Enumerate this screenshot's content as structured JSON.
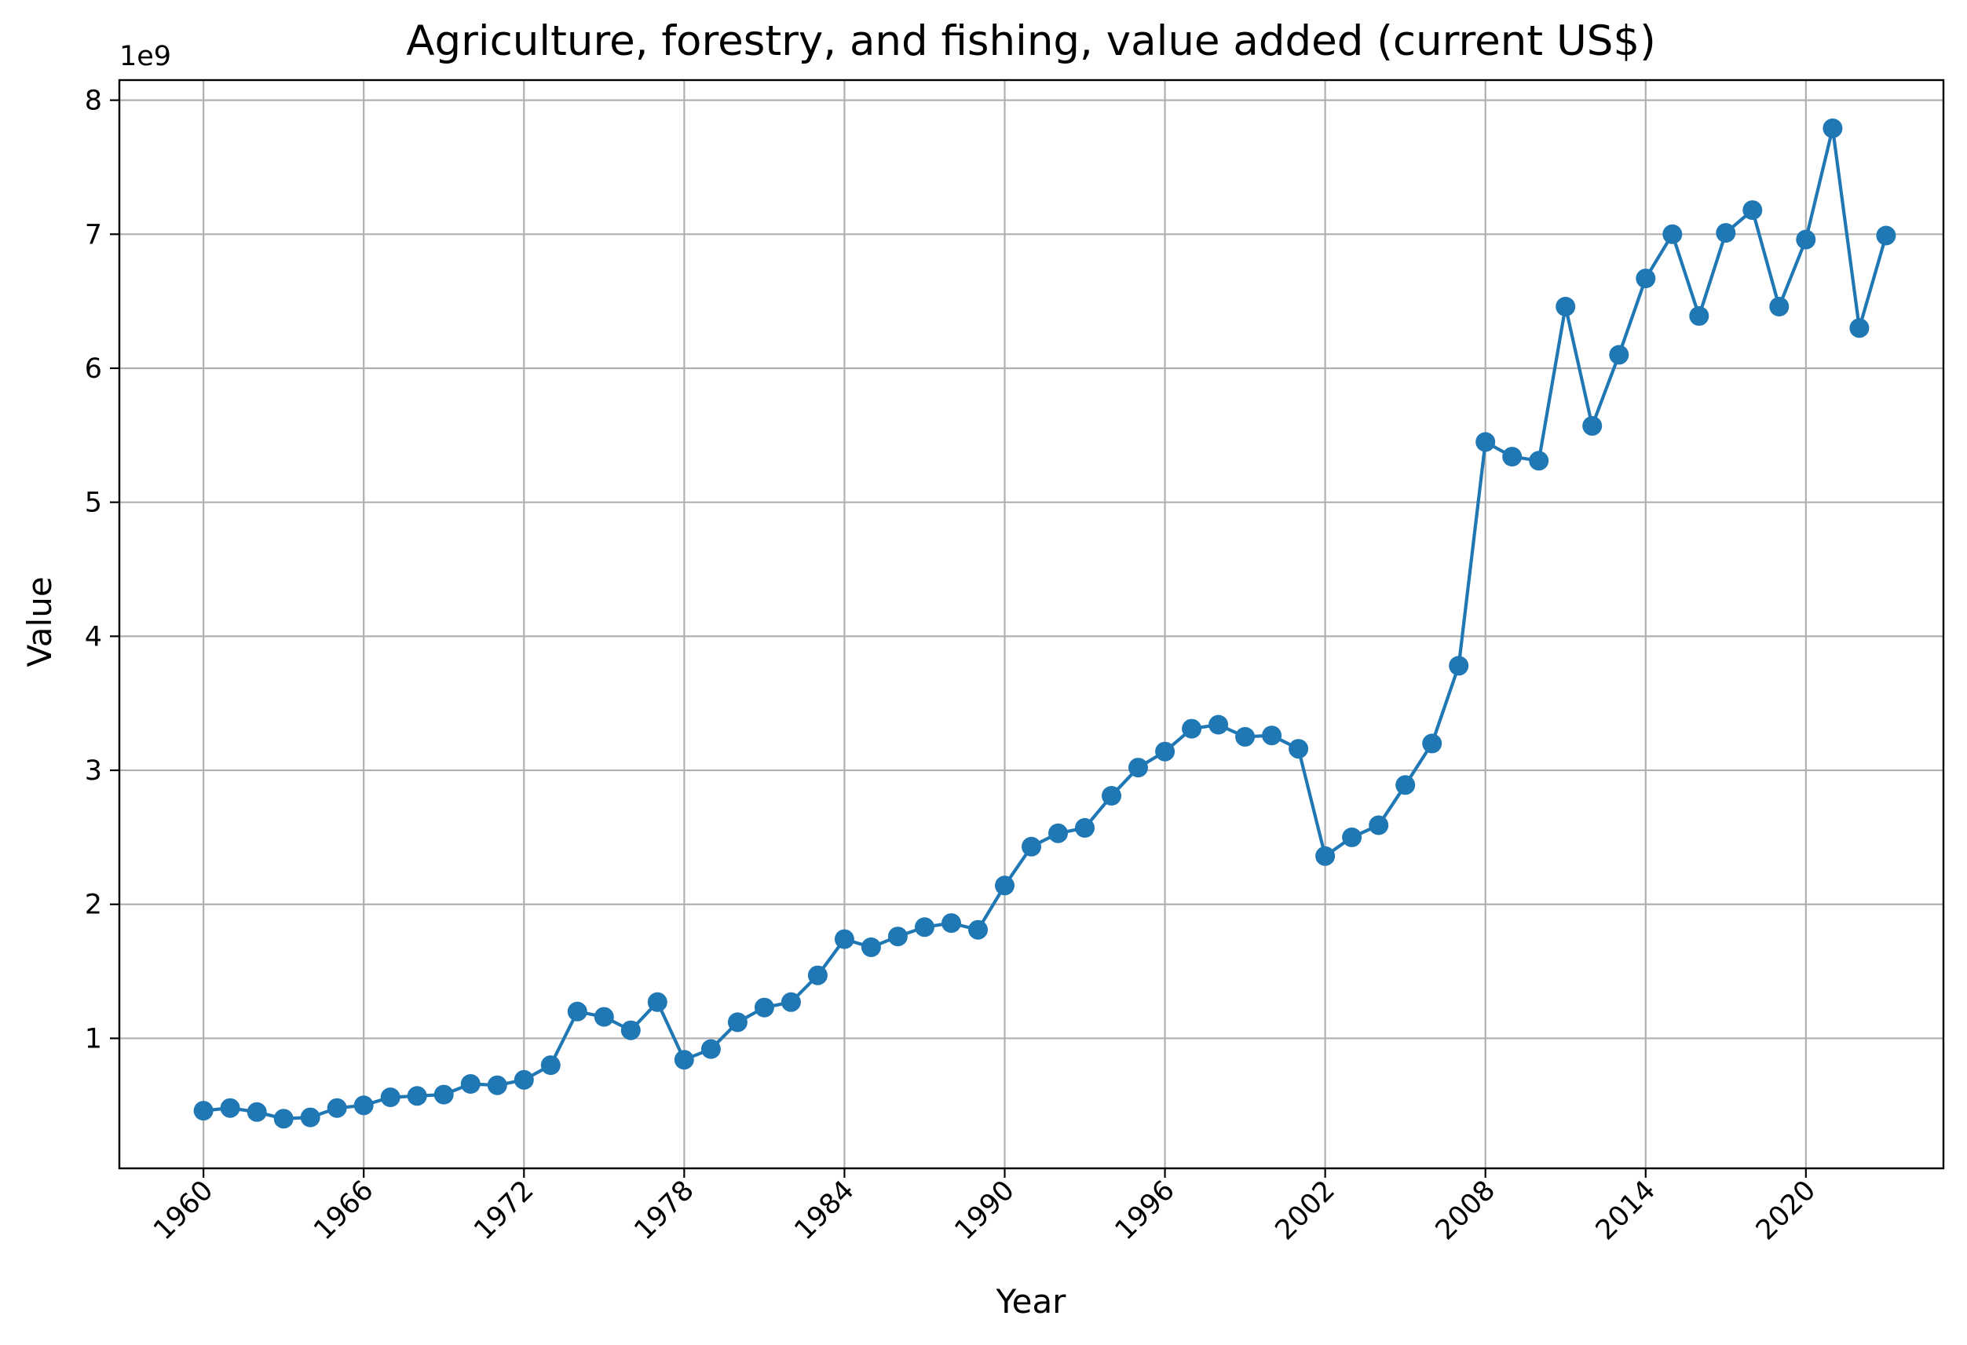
{
  "chart_data": {
    "type": "line",
    "title": "Agriculture, forestry, and fishing, value added (current US$)",
    "xlabel": "Year",
    "ylabel": "Value",
    "y_offset_label": "1e9",
    "xlim": [
      1956.85,
      2025.15
    ],
    "ylim": [
      30000000.0,
      8150000000.0
    ],
    "x_ticks": [
      1960,
      1966,
      1972,
      1978,
      1984,
      1990,
      1996,
      2002,
      2008,
      2014,
      2020
    ],
    "y_ticks": [
      1,
      2,
      3,
      4,
      5,
      6,
      7,
      8
    ],
    "y_tick_multiplier": 1000000000.0,
    "grid": true,
    "color": "#1f77b4",
    "marker": "circle",
    "x": [
      1960,
      1961,
      1962,
      1963,
      1964,
      1965,
      1966,
      1967,
      1968,
      1969,
      1970,
      1971,
      1972,
      1973,
      1974,
      1975,
      1976,
      1977,
      1978,
      1979,
      1980,
      1981,
      1982,
      1983,
      1984,
      1985,
      1986,
      1987,
      1988,
      1989,
      1990,
      1991,
      1992,
      1993,
      1994,
      1995,
      1996,
      1997,
      1998,
      1999,
      2000,
      2001,
      2002,
      2003,
      2004,
      2005,
      2006,
      2007,
      2008,
      2009,
      2010,
      2011,
      2012,
      2013,
      2014,
      2015,
      2016,
      2017,
      2018,
      2019,
      2020,
      2021,
      2022,
      2023
    ],
    "y": [
      460000000.0,
      480000000.0,
      450000000.0,
      400000000.0,
      410000000.0,
      480000000.0,
      500000000.0,
      560000000.0,
      570000000.0,
      580000000.0,
      660000000.0,
      650000000.0,
      690000000.0,
      800000000.0,
      1200000000.0,
      1160000000.0,
      1060000000.0,
      1270000000.0,
      840000000.0,
      920000000.0,
      1120000000.0,
      1230000000.0,
      1270000000.0,
      1470000000.0,
      1740000000.0,
      1680000000.0,
      1760000000.0,
      1830000000.0,
      1860000000.0,
      1810000000.0,
      2140000000.0,
      2430000000.0,
      2530000000.0,
      2570000000.0,
      2810000000.0,
      3020000000.0,
      3140000000.0,
      3310000000.0,
      3340000000.0,
      3250000000.0,
      3260000000.0,
      3160000000.0,
      2360000000.0,
      2500000000.0,
      2590000000.0,
      2890000000.0,
      3200000000.0,
      3780000000.0,
      5450000000.0,
      5340000000.0,
      5310000000.0,
      6460000000.0,
      5570000000.0,
      6100000000.0,
      6670000000.0,
      7000000000.0,
      6390000000.0,
      7010000000.0,
      7180000000.0,
      6460000000.0,
      6960000000.0,
      7790000000.0,
      6300000000.0,
      6990000000.0
    ]
  }
}
